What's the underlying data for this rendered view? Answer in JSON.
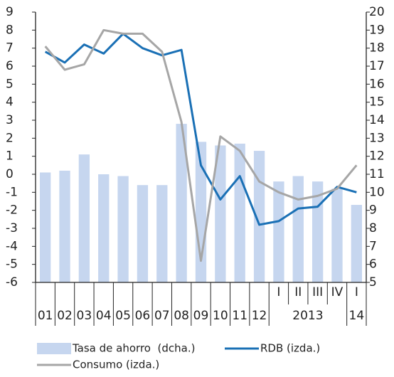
{
  "chart_data": {
    "type": "combo",
    "categories": [
      "01",
      "02",
      "03",
      "04",
      "05",
      "06",
      "07",
      "08",
      "09",
      "10",
      "11",
      "12",
      "I",
      "II",
      "III",
      "IV",
      "I"
    ],
    "year_labels": [
      "2013",
      "14"
    ],
    "series": [
      {
        "name": "Tasa de ahorro  (dcha.)",
        "type": "bar",
        "axis": "y2",
        "color": "#c6d6ef",
        "values": [
          11.1,
          11.2,
          12.1,
          11.0,
          10.9,
          10.4,
          10.4,
          13.8,
          12.8,
          12.6,
          12.7,
          12.3,
          10.6,
          10.9,
          10.6,
          10.2,
          9.3
        ]
      },
      {
        "name": "RDB (izda.)",
        "type": "line",
        "color": "#1a70b5",
        "values": [
          6.8,
          6.2,
          7.2,
          6.7,
          7.8,
          7.0,
          6.6,
          6.9,
          0.5,
          -1.4,
          -0.1,
          -2.8,
          -2.6,
          -1.9,
          -1.8,
          -0.7,
          -1.0
        ]
      },
      {
        "name": "Consumo (izda.)",
        "type": "line",
        "color": "#a6a6a6",
        "values": [
          7.1,
          5.8,
          6.1,
          8.0,
          7.8,
          7.8,
          6.8,
          2.9,
          -4.8,
          2.1,
          1.3,
          -0.4,
          -1.0,
          -1.4,
          -1.2,
          -0.8,
          0.5
        ]
      }
    ],
    "ylim": [
      -6,
      9
    ],
    "yticks": [
      9,
      8,
      7,
      6,
      5,
      4,
      3,
      2,
      1,
      0,
      -1,
      -2,
      -3,
      -4,
      -5,
      -6
    ],
    "y2lim": [
      5,
      20
    ],
    "y2ticks": [
      20,
      19,
      18,
      17,
      16,
      15,
      14,
      13,
      12,
      11,
      10,
      9,
      8,
      7,
      6,
      5
    ]
  }
}
